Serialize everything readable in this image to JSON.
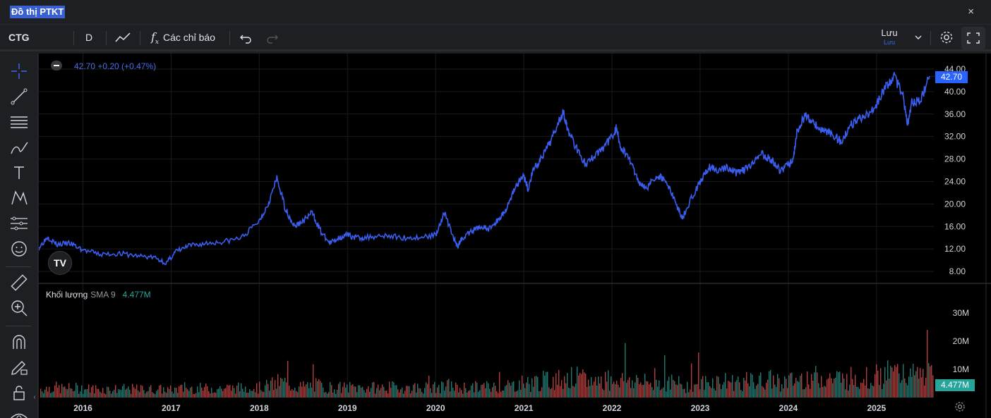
{
  "window": {
    "title": "Đồ thị PTKT",
    "close_icon": "×"
  },
  "toolbar": {
    "symbol": "CTG",
    "interval": "D",
    "indicators_label": "Các chỉ báo",
    "save_label": "Lưu",
    "save_sublabel": "Lưu"
  },
  "legend": {
    "price_change": "42.70  +0.20 (+0.47%)"
  },
  "volume_legend": {
    "label": "Khối lượng",
    "sma": "SMA 9",
    "value": "4.477M"
  },
  "price_tag": "42.70",
  "volume_tag": "4.477M",
  "logo_text": "TV",
  "colors": {
    "line": "#3b5ef0",
    "volume_up": "#26a69a",
    "volume_down": "#ef5350",
    "accent": "#2962ff"
  },
  "chart_data": {
    "type": "line",
    "series": [
      {
        "x": [
          2015.5,
          2015.6,
          2015.7,
          2015.85,
          2016.0,
          2016.2,
          2016.4,
          2016.6,
          2016.8,
          2016.95,
          2017.05,
          2017.2,
          2017.4,
          2017.6,
          2017.8,
          2018.0,
          2018.1,
          2018.2,
          2018.3,
          2018.4,
          2018.5,
          2018.6,
          2018.7,
          2018.8,
          2018.9,
          2019.0,
          2019.1,
          2019.2,
          2019.4,
          2019.6,
          2019.8,
          2020.0,
          2020.1,
          2020.2,
          2020.25,
          2020.3,
          2020.4,
          2020.5,
          2020.6,
          2020.7,
          2020.8,
          2020.9,
          2021.0,
          2021.05,
          2021.1,
          2021.2,
          2021.3,
          2021.4,
          2021.45,
          2021.5,
          2021.6,
          2021.7,
          2021.8,
          2021.9,
          2022.0,
          2022.05,
          2022.1,
          2022.2,
          2022.3,
          2022.4,
          2022.5,
          2022.6,
          2022.7,
          2022.8,
          2022.9,
          2023.0,
          2023.1,
          2023.2,
          2023.3,
          2023.4,
          2023.5,
          2023.6,
          2023.7,
          2023.8,
          2023.9,
          2024.0,
          2024.05,
          2024.1,
          2024.2,
          2024.3,
          2024.4,
          2024.5,
          2024.6,
          2024.7,
          2024.8,
          2024.9,
          2025.0,
          2025.1,
          2025.2,
          2025.3,
          2025.35,
          2025.4,
          2025.5,
          2025.6
        ],
        "y": [
          12.2,
          14.2,
          12.8,
          13.0,
          11.8,
          11.0,
          11.2,
          10.8,
          10.5,
          9.5,
          11.5,
          12.5,
          13.0,
          13.3,
          14.0,
          17.0,
          20.0,
          24.5,
          19.0,
          16.0,
          17.0,
          18.5,
          15.0,
          13.0,
          14.0,
          14.5,
          14.0,
          14.0,
          14.5,
          14.0,
          14.0,
          14.5,
          18.5,
          14.0,
          12.5,
          14.0,
          15.0,
          16.0,
          15.5,
          17.0,
          19.0,
          23.0,
          25.0,
          22.5,
          26.0,
          28.0,
          31.0,
          35.0,
          36.5,
          33.0,
          30.0,
          27.0,
          28.5,
          30.0,
          32.0,
          33.5,
          30.0,
          28.0,
          24.0,
          23.0,
          25.0,
          24.5,
          21.0,
          17.5,
          21.0,
          24.0,
          26.5,
          26.0,
          26.5,
          25.5,
          26.0,
          27.0,
          29.0,
          28.0,
          26.0,
          27.0,
          27.5,
          33.0,
          36.0,
          34.0,
          33.0,
          32.5,
          31.0,
          34.0,
          35.0,
          36.0,
          37.5,
          41.0,
          42.5,
          39.5,
          34.0,
          38.0,
          38.5,
          42.7
        ]
      }
    ],
    "price_axis_ticks": [
      "44.00",
      "40.00",
      "36.00",
      "32.00",
      "28.00",
      "24.00",
      "20.00",
      "16.00",
      "12.00",
      "8.00"
    ],
    "volume_axis_ticks": [
      "30M",
      "20M",
      "10M"
    ],
    "x_ticks": [
      "2016",
      "2017",
      "2018",
      "2019",
      "2020",
      "2021",
      "2022",
      "2023",
      "2024",
      "2025"
    ],
    "ylim": [
      6,
      45
    ],
    "xlim": [
      2015.5,
      2025.65
    ],
    "grid": true
  }
}
